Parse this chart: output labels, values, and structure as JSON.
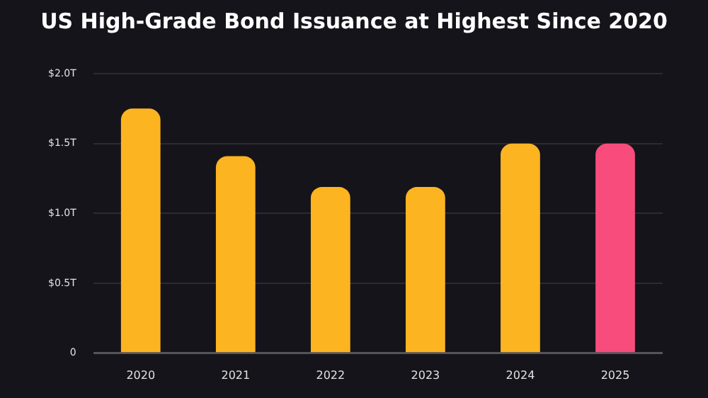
{
  "chart_data": {
    "type": "bar",
    "title": "US High-Grade Bond Issuance at Highest Since 2020",
    "categories": [
      "2020",
      "2021",
      "2022",
      "2023",
      "2024",
      "2025"
    ],
    "values": [
      1.75,
      1.41,
      1.19,
      1.19,
      1.5,
      1.5
    ],
    "colors": [
      "#fdb421",
      "#fdb421",
      "#fdb421",
      "#fdb421",
      "#fdb421",
      "#f74c7c"
    ],
    "ylim": [
      0,
      2
    ],
    "yticks": [
      {
        "value": 0,
        "label": "0"
      },
      {
        "value": 0.5,
        "label": "$0.5T"
      },
      {
        "value": 1,
        "label": "$1.0T"
      },
      {
        "value": 1.5,
        "label": "$1.5T"
      },
      {
        "value": 2,
        "label": "$2.0T"
      }
    ],
    "grid": "y"
  }
}
